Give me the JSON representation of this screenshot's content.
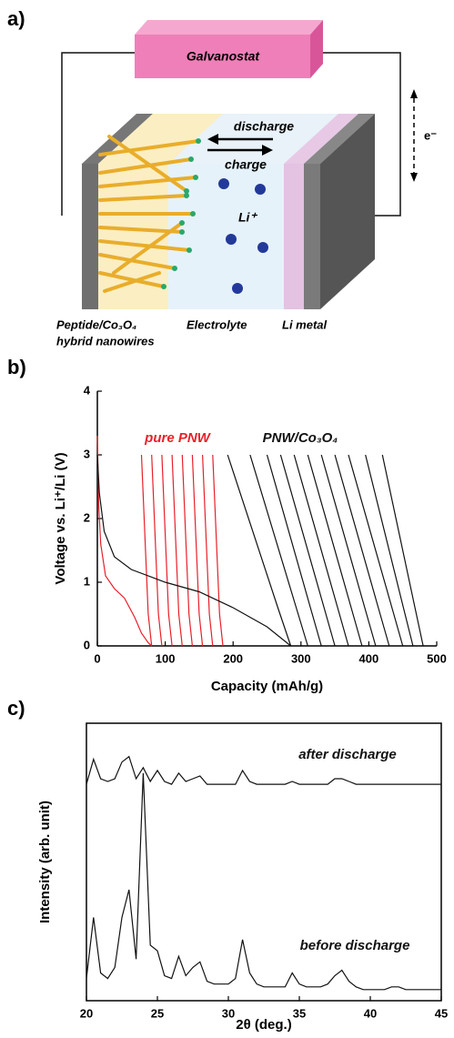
{
  "panel_labels": [
    "a)"
  ],
  "diagram": {
    "instrument": "Galvanostat",
    "arrow_top": "discharge",
    "arrow_bottom": "charge",
    "ion": "Li⁺",
    "electron": "e⁻",
    "anode_line1": "Peptide/Co₃O₄",
    "anode_line2": "hybrid nanowires",
    "electrolyte": "Electrolyte",
    "cathode": "Li metal"
  },
  "chart_data": [
    {
      "type": "line",
      "panel": "b)",
      "xlabel": "Capacity (mAh/g)",
      "ylabel": "Voltage vs. Li⁺/Li (V)",
      "xlim": [
        0,
        500
      ],
      "xticks": [
        0,
        100,
        200,
        300,
        400,
        500
      ],
      "ylim": [
        0,
        4
      ],
      "yticks": [
        0,
        1,
        2,
        3,
        4
      ],
      "box": false,
      "grid": false,
      "series": [
        {
          "name": "pure PNW",
          "color": "#e8202a",
          "curves": [
            {
              "x": [
                0,
                2,
                5,
                12,
                25,
                40,
                55,
                65,
                75,
                80
              ],
              "y": [
                3.3,
                2.2,
                1.6,
                1.1,
                0.9,
                0.75,
                0.45,
                0.2,
                0.05,
                0
              ]
            },
            {
              "x": [
                80,
                75,
                65
              ],
              "y": [
                0,
                0.5,
                3
              ]
            },
            {
              "x": [
                95,
                90,
                80
              ],
              "y": [
                0,
                0.5,
                3
              ]
            },
            {
              "x": [
                110,
                105,
                95
              ],
              "y": [
                0,
                0.5,
                3
              ]
            },
            {
              "x": [
                125,
                120,
                110
              ],
              "y": [
                0,
                0.5,
                3
              ]
            },
            {
              "x": [
                140,
                135,
                125
              ],
              "y": [
                0,
                0.5,
                3
              ]
            },
            {
              "x": [
                155,
                150,
                140
              ],
              "y": [
                0,
                0.5,
                3
              ]
            },
            {
              "x": [
                170,
                165,
                155
              ],
              "y": [
                0,
                0.5,
                3
              ]
            },
            {
              "x": [
                185,
                180,
                170
              ],
              "y": [
                0,
                0.5,
                3
              ]
            }
          ]
        },
        {
          "name": "PNW/Co₃O₄",
          "color": "#111111",
          "curves": [
            {
              "x": [
                0,
                3,
                10,
                25,
                50,
                100,
                150,
                200,
                250,
                285
              ],
              "y": [
                3.0,
                2.4,
                1.8,
                1.4,
                1.2,
                1.0,
                0.85,
                0.6,
                0.3,
                0
              ]
            },
            {
              "x": [
                285,
                266,
                192
              ],
              "y": [
                0,
                0.6,
                3
              ]
            },
            {
              "x": [
                310,
                293,
                225
              ],
              "y": [
                0,
                0.6,
                3
              ]
            },
            {
              "x": [
                330,
                314,
                250
              ],
              "y": [
                0,
                0.6,
                3
              ]
            },
            {
              "x": [
                350,
                334,
                270
              ],
              "y": [
                0,
                0.6,
                3
              ]
            },
            {
              "x": [
                370,
                354,
                290
              ],
              "y": [
                0,
                0.6,
                3
              ]
            },
            {
              "x": [
                390,
                374,
                310
              ],
              "y": [
                0,
                0.6,
                3
              ]
            },
            {
              "x": [
                410,
                394,
                330
              ],
              "y": [
                0,
                0.6,
                3
              ]
            },
            {
              "x": [
                430,
                414,
                350
              ],
              "y": [
                0,
                0.6,
                3
              ]
            },
            {
              "x": [
                450,
                434,
                370
              ],
              "y": [
                0,
                0.6,
                3
              ]
            },
            {
              "x": [
                465,
                451,
                395
              ],
              "y": [
                0,
                0.6,
                3
              ]
            },
            {
              "x": [
                480,
                468,
                420
              ],
              "y": [
                0,
                0.6,
                3
              ]
            }
          ]
        }
      ]
    },
    {
      "type": "line",
      "panel": "c)",
      "xlabel": "2θ (deg.)",
      "ylabel": "Intensity (arb. unit)",
      "xlim": [
        20,
        45
      ],
      "xticks": [
        20,
        25,
        30,
        35,
        40,
        45
      ],
      "ylim": [
        0,
        100
      ],
      "box": true,
      "grid": false,
      "x": [
        20,
        20.5,
        21,
        21.5,
        22,
        22.5,
        23,
        23.5,
        24,
        24.5,
        25,
        25.5,
        26,
        26.5,
        27,
        27.5,
        28,
        28.5,
        29,
        29.5,
        30,
        30.5,
        31,
        31.5,
        32,
        32.5,
        33,
        33.5,
        34,
        34.5,
        35,
        35.5,
        36,
        36.5,
        37,
        37.5,
        38,
        38.5,
        39,
        39.5,
        40,
        40.5,
        41,
        41.5,
        42,
        42.5,
        43,
        43.5,
        44,
        44.5,
        45
      ],
      "series": [
        {
          "name": "after discharge",
          "color": "#111111",
          "values": [
            78,
            87,
            80,
            79,
            80,
            86,
            88,
            80,
            84,
            79,
            83,
            79,
            78,
            82,
            79,
            80,
            81,
            78,
            78,
            78,
            78,
            78,
            83,
            79,
            78,
            78,
            78,
            78,
            78,
            79,
            78,
            78,
            78,
            78,
            78,
            80,
            80,
            79,
            78,
            78,
            78,
            78,
            78,
            78,
            78,
            78,
            78,
            78,
            78,
            78,
            78
          ]
        },
        {
          "name": "before discharge",
          "color": "#111111",
          "values": [
            8,
            30,
            10,
            8,
            12,
            30,
            40,
            15,
            82,
            20,
            18,
            9,
            8,
            16,
            9,
            12,
            14,
            7,
            6,
            6,
            6,
            8,
            22,
            10,
            6,
            5,
            5,
            5,
            5,
            10,
            6,
            5,
            5,
            5,
            6,
            9,
            11,
            7,
            5,
            4,
            4,
            4,
            4,
            5,
            5,
            4,
            4,
            4,
            4,
            4,
            4
          ]
        }
      ]
    }
  ]
}
